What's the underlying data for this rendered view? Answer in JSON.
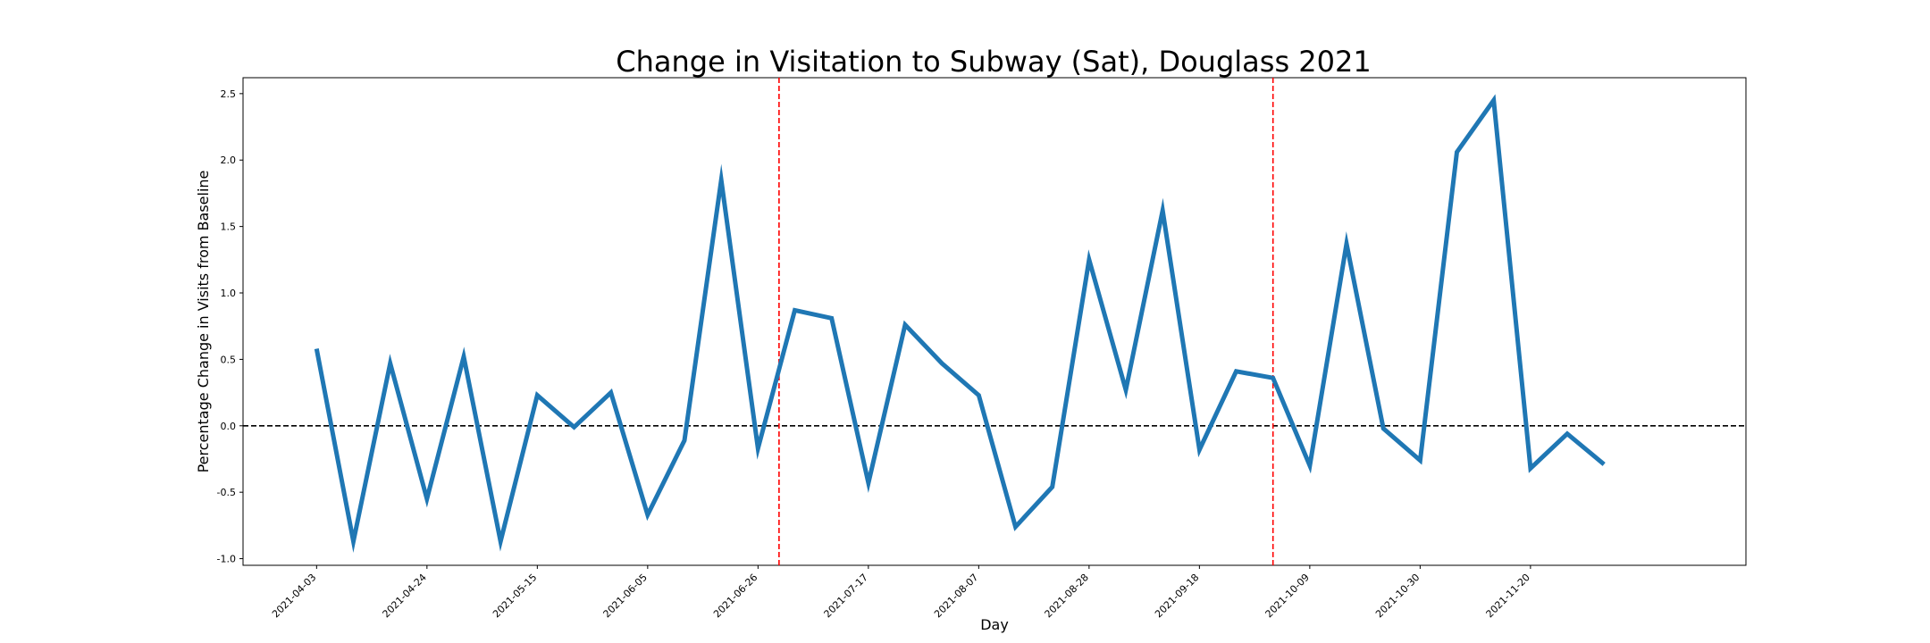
{
  "chart_data": {
    "type": "line",
    "title": "Change in Visitation to Subway (Sat), Douglass 2021",
    "xlabel": "Day",
    "ylabel": "Percentage Change in Visits from Baseline",
    "ylim": [
      -1.05,
      2.62
    ],
    "xlim": [
      "2021-03-20",
      "2021-12-31"
    ],
    "yticks": [
      -1.0,
      -0.5,
      0.0,
      0.5,
      1.0,
      1.5,
      2.0,
      2.5
    ],
    "xticks": [
      "2021-04-03",
      "2021-04-24",
      "2021-05-15",
      "2021-06-05",
      "2021-06-26",
      "2021-07-17",
      "2021-08-07",
      "2021-08-28",
      "2021-09-18",
      "2021-10-09",
      "2021-10-30",
      "2021-11-20"
    ],
    "series": [
      {
        "color": "#1f77b4",
        "points": [
          {
            "x": "2021-04-03",
            "y": 0.58
          },
          {
            "x": "2021-04-10",
            "y": -0.87
          },
          {
            "x": "2021-04-17",
            "y": 0.47
          },
          {
            "x": "2021-04-24",
            "y": -0.55
          },
          {
            "x": "2021-05-01",
            "y": 0.52
          },
          {
            "x": "2021-05-08",
            "y": -0.87
          },
          {
            "x": "2021-05-15",
            "y": 0.23
          },
          {
            "x": "2021-05-22",
            "y": -0.01
          },
          {
            "x": "2021-05-29",
            "y": 0.25
          },
          {
            "x": "2021-06-05",
            "y": -0.67
          },
          {
            "x": "2021-06-12",
            "y": -0.11
          },
          {
            "x": "2021-06-19",
            "y": 1.85
          },
          {
            "x": "2021-06-26",
            "y": -0.17
          },
          {
            "x": "2021-07-03",
            "y": 0.87
          },
          {
            "x": "2021-07-10",
            "y": 0.81
          },
          {
            "x": "2021-07-17",
            "y": -0.43
          },
          {
            "x": "2021-07-24",
            "y": 0.76
          },
          {
            "x": "2021-07-31",
            "y": 0.47
          },
          {
            "x": "2021-08-07",
            "y": 0.23
          },
          {
            "x": "2021-08-14",
            "y": -0.76
          },
          {
            "x": "2021-08-21",
            "y": -0.46
          },
          {
            "x": "2021-08-28",
            "y": 1.25
          },
          {
            "x": "2021-09-04",
            "y": 0.27
          },
          {
            "x": "2021-09-11",
            "y": 1.62
          },
          {
            "x": "2021-09-18",
            "y": -0.18
          },
          {
            "x": "2021-09-25",
            "y": 0.41
          },
          {
            "x": "2021-10-02",
            "y": 0.36
          },
          {
            "x": "2021-10-09",
            "y": -0.3
          },
          {
            "x": "2021-10-16",
            "y": 1.37
          },
          {
            "x": "2021-10-23",
            "y": -0.02
          },
          {
            "x": "2021-10-30",
            "y": -0.26
          },
          {
            "x": "2021-11-06",
            "y": 2.06
          },
          {
            "x": "2021-11-13",
            "y": 2.45
          },
          {
            "x": "2021-11-20",
            "y": -0.32
          },
          {
            "x": "2021-11-27",
            "y": -0.06
          },
          {
            "x": "2021-12-04",
            "y": -0.29
          }
        ]
      }
    ],
    "reference_lines": {
      "horizontal": {
        "y": 0.0,
        "color": "#000000",
        "style": "dashed"
      },
      "vertical": [
        {
          "x": "2021-06-30",
          "color": "#ff0000",
          "style": "dashed"
        },
        {
          "x": "2021-10-02",
          "color": "#ff0000",
          "style": "dashed"
        }
      ]
    },
    "grid": false,
    "legend": "none"
  }
}
